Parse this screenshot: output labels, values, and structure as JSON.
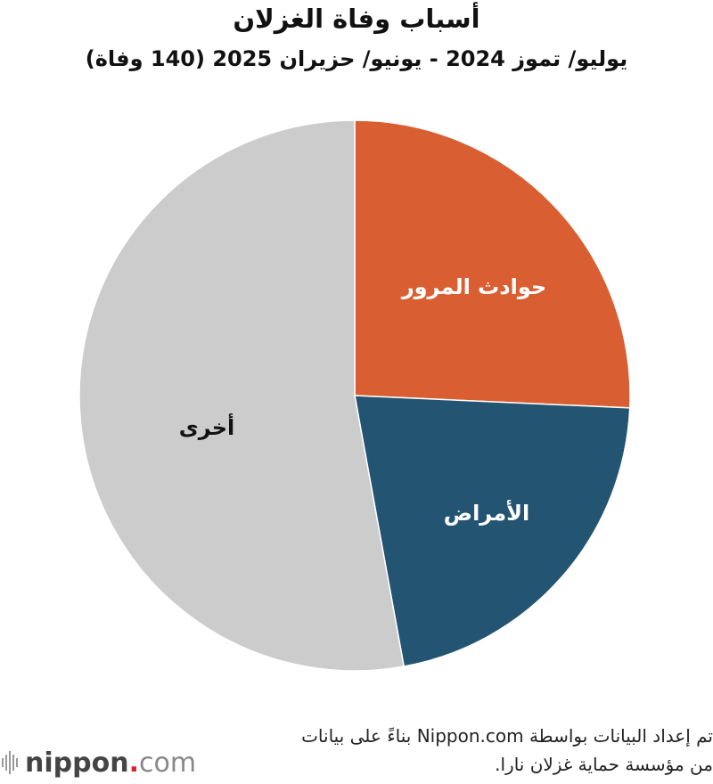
{
  "chart_data": {
    "type": "pie",
    "title": "أسباب وفاة الغزلان",
    "subtitle": "يوليو/ تموز 2024 - يونيو/ حزيران 2025 (140 وفاة)",
    "total": 140,
    "start": "top",
    "direction": "clockwise",
    "slices": [
      {
        "label": "حوادث المرور",
        "value": 36,
        "color": "#d95f32",
        "label_color": "#ffffff"
      },
      {
        "label": "الأمراض",
        "value": 30,
        "color": "#235572",
        "label_color": "#ffffff"
      },
      {
        "label": "أخرى",
        "value": 74,
        "color": "#cccccc",
        "label_color": "#111111"
      }
    ]
  },
  "footer": {
    "source_line1": "تم إعداد البيانات بواسطة Nippon.com بناءً على بيانات",
    "source_line2": "من مؤسسة حماية غزلان نارا.",
    "logo_word": "nippon",
    "logo_dot": ".",
    "logo_com": "com"
  }
}
